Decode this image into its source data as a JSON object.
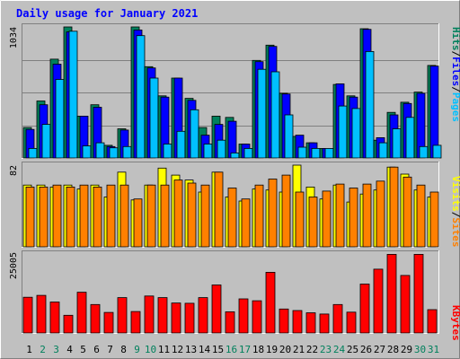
{
  "chart_data": {
    "type": "bar",
    "title": "Daily usage for January 2021",
    "colors": {
      "background": "#c0c0c0",
      "plot": "#c0c0c0",
      "frame_light": "#ffffff",
      "frame_dark": "#808080",
      "title": "#0000ff",
      "gridline": "#808080",
      "hits": "#00805c",
      "files": "#0000ff",
      "pages": "#00c0ff",
      "visits": "#ffff00",
      "sites": "#ff8000",
      "kbytes": "#ff0000",
      "day_black": "#000000",
      "day_green": "#00805c"
    },
    "days": [
      "1",
      "2",
      "3",
      "4",
      "5",
      "6",
      "7",
      "8",
      "9",
      "10",
      "11",
      "12",
      "13",
      "14",
      "15",
      "16",
      "17",
      "18",
      "19",
      "20",
      "21",
      "22",
      "23",
      "24",
      "25",
      "26",
      "27",
      "28",
      "29",
      "30",
      "31"
    ],
    "weekend_days": [
      "2",
      "3",
      "9",
      "10",
      "16",
      "17",
      "23",
      "24",
      "30",
      "31"
    ],
    "panels": [
      {
        "id": "hits-files-pages",
        "max_label": "1034",
        "ymax": 1034,
        "legend": [
          {
            "text": "Hits",
            "color": "#00805c"
          },
          {
            "text": "/",
            "color": "#000000"
          },
          {
            "text": "Files",
            "color": "#0000ff"
          },
          {
            "text": "/",
            "color": "#000000"
          },
          {
            "text": "Pages",
            "color": "#00c0ff"
          }
        ],
        "series": [
          {
            "name": "Hits",
            "color": "#00805c",
            "values": [
              240,
              450,
              780,
              1034,
              330,
              420,
              100,
              230,
              1034,
              720,
              490,
              630,
              470,
              240,
              330,
              320,
              110,
              770,
              890,
              510,
              170,
              120,
              75,
              580,
              490,
              1020,
              140,
              360,
              440,
              520,
              730
            ]
          },
          {
            "name": "Files",
            "color": "#0000ff",
            "values": [
              225,
              420,
              740,
              995,
              330,
              400,
              90,
              220,
              1010,
              710,
              480,
              630,
              455,
              180,
              265,
              290,
              110,
              760,
              880,
              505,
              180,
              120,
              75,
              585,
              480,
              1015,
              160,
              340,
              430,
              510,
              725
            ]
          },
          {
            "name": "Pages",
            "color": "#00c0ff",
            "values": [
              75,
              265,
              620,
              1000,
              95,
              120,
              80,
              90,
              965,
              630,
              110,
              210,
              380,
              110,
              140,
              40,
              75,
              700,
              680,
              340,
              85,
              75,
              75,
              410,
              390,
              840,
              120,
              230,
              320,
              90,
              100
            ]
          }
        ]
      },
      {
        "id": "visits-sites",
        "max_label": "82",
        "ymax": 82,
        "legend": [
          {
            "text": "Visits",
            "color": "#ffff00"
          },
          {
            "text": "/",
            "color": "#000000"
          },
          {
            "text": "Sites",
            "color": "#ff8000"
          }
        ],
        "series": [
          {
            "name": "Visits",
            "color": "#ffff00",
            "values": [
              62,
              62,
              60,
              62,
              58,
              62,
              50,
              75,
              47,
              62,
              79,
              72,
              67,
              55,
              75,
              50,
              46,
              58,
              57,
              55,
              82,
              60,
              48,
              62,
              45,
              53,
              57,
              80,
              73,
              57,
              50
            ]
          },
          {
            "name": "Sites",
            "color": "#ff8000",
            "values": [
              60,
              60,
              62,
              60,
              62,
              60,
              62,
              62,
              48,
              62,
              62,
              67,
              64,
              62,
              75,
              59,
              48,
              62,
              68,
              72,
              55,
              50,
              56,
              63,
              59,
              63,
              66,
              80,
              70,
              62,
              55
            ]
          }
        ]
      },
      {
        "id": "kbytes",
        "max_label": "25005",
        "ymax": 25005,
        "legend": [
          {
            "text": "KBytes",
            "color": "#ff0000"
          }
        ],
        "series": [
          {
            "name": "KBytes",
            "color": "#ff0000",
            "values": [
              11300,
              11900,
              9800,
              5600,
              12900,
              9000,
              6500,
              11200,
              6800,
              11700,
              11200,
              9500,
              9400,
              11200,
              15200,
              6700,
              10800,
              10200,
              19200,
              7600,
              7100,
              6400,
              6000,
              9000,
              6600,
              15500,
              20200,
              24900,
              18200,
              24900,
              7400
            ]
          }
        ]
      }
    ]
  }
}
